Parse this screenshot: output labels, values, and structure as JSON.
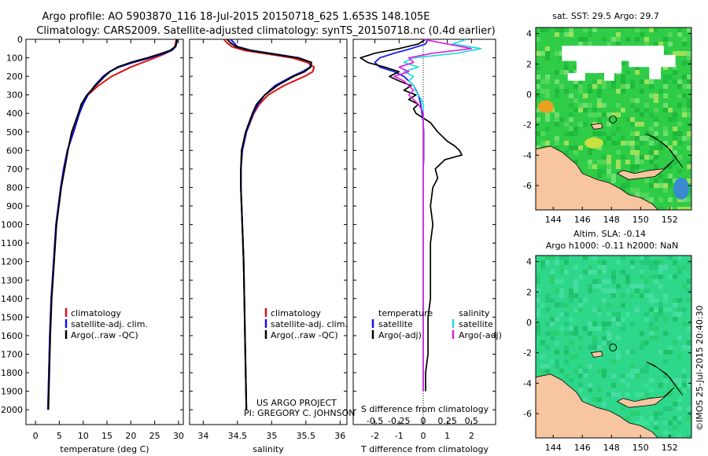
{
  "header": {
    "line1": "Argo profile: AO 5903870_116 18-Jul-2015 20150718_625 1.653S 148.105E",
    "line2": "Climatology: CARS2009. Satellite-adjusted climatology: synTS_20150718.nc (0.4d earlier)"
  },
  "colors": {
    "climatology": "#dd1111",
    "satellite": "#1111ee",
    "argo": "#000000",
    "sat_salinity": "#22dddd",
    "argo_salinity": "#dd22dd",
    "land": "#f7c59f",
    "missing": "#ffffff"
  },
  "credits": {
    "project": "US ARGO PROJECT",
    "pi": "PI: GREGORY C. JOHNSON",
    "stamp": "©IMOS 25-Jul-2015 20:40:30"
  },
  "chart_data": [
    {
      "type": "line",
      "name": "temperature-profile",
      "xlabel": "temperature (deg C)",
      "ylabel": "",
      "xlim": [
        -2,
        31
      ],
      "ylim": [
        2080,
        0
      ],
      "xticks": [
        "0",
        "5",
        "10",
        "15",
        "20",
        "25",
        "30"
      ],
      "yticks": [
        "0",
        "100",
        "200",
        "300",
        "400",
        "500",
        "600",
        "700",
        "800",
        "900",
        "1000",
        "1100",
        "1200",
        "1300",
        "1400",
        "1500",
        "1600",
        "1700",
        "1800",
        "1900",
        "2000"
      ],
      "legend": [
        "climatology",
        "satellite-adj. clim.",
        "Argo(..raw -QC)"
      ],
      "depth": [
        0,
        20,
        40,
        60,
        80,
        100,
        125,
        150,
        175,
        200,
        250,
        300,
        350,
        400,
        500,
        600,
        700,
        800,
        900,
        1000,
        1200,
        1400,
        1600,
        1800,
        2000
      ],
      "series": [
        {
          "name": "climatology",
          "values": [
            29.5,
            29.4,
            29.2,
            28.5,
            27.0,
            25.0,
            22.5,
            20.0,
            18.0,
            16.0,
            13.2,
            11.0,
            9.8,
            9.0,
            7.9,
            6.7,
            5.9,
            5.3,
            4.8,
            4.3,
            3.8,
            3.3,
            3.0,
            2.8,
            2.6
          ]
        },
        {
          "name": "satellite-adj. clim.",
          "values": [
            29.7,
            29.6,
            29.4,
            28.6,
            26.5,
            24.0,
            20.5,
            17.5,
            15.5,
            14.2,
            12.4,
            11.0,
            10.0,
            9.2,
            8.0,
            6.7,
            5.9,
            5.3,
            4.8,
            4.3,
            3.8,
            3.3,
            3.0,
            2.8,
            2.6
          ]
        },
        {
          "name": "Argo(..raw -QC)",
          "values": [
            29.7,
            29.6,
            29.3,
            28.3,
            26.0,
            23.5,
            20.0,
            17.2,
            15.6,
            14.5,
            12.6,
            10.8,
            9.6,
            9.0,
            7.6,
            6.8,
            6.1,
            5.4,
            4.9,
            4.4,
            3.9,
            3.4,
            3.1,
            2.9,
            2.7
          ]
        }
      ]
    },
    {
      "type": "line",
      "name": "salinity-profile",
      "xlabel": "salinity",
      "xlim": [
        33.8,
        36.1
      ],
      "ylim": [
        2080,
        0
      ],
      "xticks": [
        "34",
        "34.5",
        "35",
        "35.5",
        "36"
      ],
      "legend": [
        "climatology",
        "satellite-adj. clim.",
        "Argo(..raw -QC)"
      ],
      "depth": [
        0,
        20,
        40,
        60,
        80,
        100,
        125,
        150,
        175,
        200,
        250,
        300,
        350,
        400,
        500,
        600,
        700,
        800,
        900,
        1000,
        1200,
        1400,
        1600,
        1800,
        2000
      ],
      "series": [
        {
          "name": "climatology",
          "values": [
            34.3,
            34.35,
            34.42,
            34.6,
            34.95,
            35.3,
            35.52,
            35.62,
            35.6,
            35.48,
            35.18,
            34.95,
            34.82,
            34.74,
            34.63,
            34.57,
            34.55,
            34.55,
            34.56,
            34.57,
            34.59,
            34.6,
            34.61,
            34.62,
            34.63
          ]
        },
        {
          "name": "satellite-adj. clim.",
          "values": [
            34.4,
            34.45,
            34.5,
            34.7,
            35.05,
            35.4,
            35.58,
            35.56,
            35.45,
            35.3,
            35.05,
            34.9,
            34.8,
            34.73,
            34.63,
            34.57,
            34.55,
            34.55,
            34.56,
            34.57,
            34.59,
            34.6,
            34.61,
            34.62,
            34.63
          ]
        },
        {
          "name": "Argo(..raw -QC)",
          "values": [
            34.35,
            34.4,
            34.48,
            34.68,
            35.02,
            35.38,
            35.58,
            35.57,
            35.48,
            35.32,
            35.08,
            34.9,
            34.78,
            34.72,
            34.62,
            34.56,
            34.55,
            34.55,
            34.56,
            34.57,
            34.59,
            34.6,
            34.61,
            34.62,
            34.63
          ]
        }
      ]
    },
    {
      "type": "line",
      "name": "difference-profile",
      "xlabel_top": "S difference from climatology",
      "xlabel": "T difference from climatology",
      "xlim": [
        -2.9,
        3.0
      ],
      "ylim": [
        2080,
        0
      ],
      "xticks": [
        "-2",
        "-1",
        "0",
        "1",
        "2"
      ],
      "xticks_top": [
        "-0.5",
        "-0.25",
        "0",
        "0.25",
        "0.5"
      ],
      "legend_titles": [
        "temperature",
        "salinity"
      ],
      "legend": [
        "satellite",
        "Argo(-adj)",
        "satellite",
        "Argo(-adj)"
      ],
      "depth": [
        0,
        25,
        50,
        75,
        100,
        125,
        150,
        175,
        200,
        225,
        250,
        275,
        300,
        325,
        350,
        375,
        400,
        450,
        500,
        550,
        575,
        600,
        625,
        650,
        700,
        750,
        800,
        900,
        1000,
        1100,
        1200,
        1300,
        1400,
        1500,
        1600,
        1700,
        1800,
        1900
      ],
      "series": [
        {
          "name": "temperature satellite",
          "values": [
            0.2,
            0.1,
            -0.5,
            -1.2,
            -1.8,
            -2.0,
            -1.8,
            -1.2,
            -0.8,
            -0.6,
            -0.4,
            -0.3,
            -0.2,
            -0.15,
            -0.1,
            -0.08,
            -0.05,
            0.0,
            0.02,
            0.02,
            0.02,
            0.02,
            0.02,
            0.02,
            0.0,
            0.0,
            0.0,
            0.0,
            0.0,
            0.0,
            0.0,
            0.0,
            0.0,
            0.0,
            0.0,
            0.0,
            0.0,
            0.0
          ]
        },
        {
          "name": "temperature Argo(-adj)",
          "values": [
            0.1,
            -0.2,
            -1.0,
            -2.0,
            -2.6,
            -2.3,
            -1.6,
            -1.0,
            -1.4,
            -1.0,
            -0.5,
            -0.8,
            -0.3,
            -0.6,
            -0.2,
            -0.4,
            -0.3,
            0.3,
            0.6,
            1.0,
            1.3,
            1.5,
            1.6,
            0.9,
            0.5,
            0.6,
            0.4,
            0.3,
            0.4,
            0.3,
            0.3,
            0.3,
            0.3,
            0.2,
            0.2,
            0.2,
            0.1,
            0.1
          ]
        },
        {
          "name": "salinity satellite",
          "values": [
            0.45,
            0.3,
            0.6,
            0.35,
            -0.1,
            -0.2,
            -0.05,
            -0.2,
            -0.1,
            -0.15,
            -0.1,
            -0.08,
            -0.05,
            -0.02,
            0.0,
            0.0,
            0.0,
            0.0,
            0.0,
            0.0,
            0.0,
            0.0,
            0.0,
            0.0,
            0.0,
            0.0,
            0.0,
            0.0,
            0.0,
            0.0,
            0.0,
            0.0,
            0.0,
            0.0,
            0.0,
            0.0,
            0.0,
            0.0
          ]
        },
        {
          "name": "salinity Argo(-adj)",
          "values": [
            0.0,
            0.25,
            0.5,
            0.1,
            -0.15,
            -0.1,
            -0.25,
            -0.15,
            -0.3,
            -0.2,
            -0.15,
            -0.1,
            -0.15,
            -0.1,
            -0.05,
            -0.02,
            0.0,
            0.0,
            0.0,
            0.0,
            0.0,
            0.0,
            0.0,
            0.0,
            0.0,
            0.0,
            0.0,
            0.0,
            0.0,
            0.0,
            0.0,
            0.0,
            0.0,
            0.0,
            0.0,
            0.0,
            0.0,
            0.0
          ]
        }
      ]
    },
    {
      "type": "heatmap",
      "name": "sst-map",
      "title": "sat. SST: 29.5 Argo: 29.7",
      "xlim": [
        142.8,
        153.5
      ],
      "ylim": [
        -7.6,
        4.4
      ],
      "xticks": [
        "144",
        "146",
        "148",
        "150",
        "152"
      ],
      "yticks": [
        "4",
        "2",
        "0",
        "-2",
        "-4",
        "-6"
      ],
      "float_position": [
        148.105,
        -1.653
      ]
    },
    {
      "type": "heatmap",
      "name": "sla-map",
      "title": "Altim. SLA: -0.14",
      "subtitle": "Argo h1000: -0.11 h2000: NaN",
      "xlim": [
        142.8,
        153.5
      ],
      "ylim": [
        -7.6,
        4.4
      ],
      "xticks": [
        "144",
        "146",
        "148",
        "150",
        "152"
      ],
      "yticks": [
        "4",
        "2",
        "0",
        "-2",
        "-4",
        "-6"
      ],
      "float_position": [
        148.105,
        -1.653
      ]
    }
  ]
}
